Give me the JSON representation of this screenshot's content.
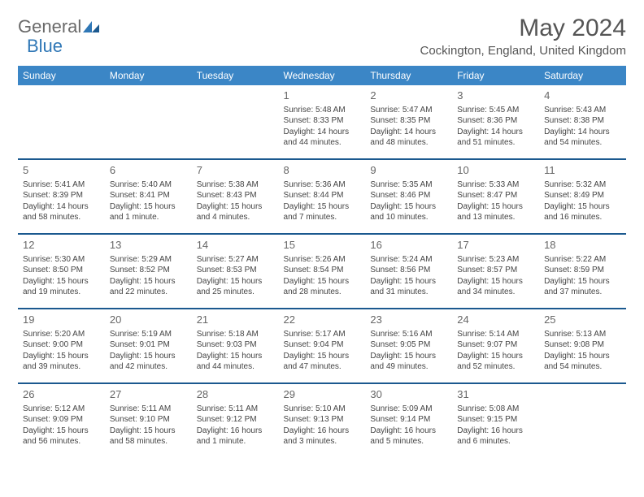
{
  "brand": {
    "part1": "General",
    "part2": "Blue"
  },
  "title": "May 2024",
  "location": "Cockington, England, United Kingdom",
  "style": {
    "header_bg": "#3b86c6",
    "header_fg": "#ffffff",
    "row_border": "#1b598f",
    "text_color": "#444444",
    "daynum_color": "#666666",
    "title_color": "#555555",
    "bg": "#ffffff"
  },
  "weekdays": [
    "Sunday",
    "Monday",
    "Tuesday",
    "Wednesday",
    "Thursday",
    "Friday",
    "Saturday"
  ],
  "weeks": [
    [
      null,
      null,
      null,
      {
        "n": "1",
        "sr": "Sunrise: 5:48 AM",
        "ss": "Sunset: 8:33 PM",
        "d1": "Daylight: 14 hours",
        "d2": "and 44 minutes."
      },
      {
        "n": "2",
        "sr": "Sunrise: 5:47 AM",
        "ss": "Sunset: 8:35 PM",
        "d1": "Daylight: 14 hours",
        "d2": "and 48 minutes."
      },
      {
        "n": "3",
        "sr": "Sunrise: 5:45 AM",
        "ss": "Sunset: 8:36 PM",
        "d1": "Daylight: 14 hours",
        "d2": "and 51 minutes."
      },
      {
        "n": "4",
        "sr": "Sunrise: 5:43 AM",
        "ss": "Sunset: 8:38 PM",
        "d1": "Daylight: 14 hours",
        "d2": "and 54 minutes."
      }
    ],
    [
      {
        "n": "5",
        "sr": "Sunrise: 5:41 AM",
        "ss": "Sunset: 8:39 PM",
        "d1": "Daylight: 14 hours",
        "d2": "and 58 minutes."
      },
      {
        "n": "6",
        "sr": "Sunrise: 5:40 AM",
        "ss": "Sunset: 8:41 PM",
        "d1": "Daylight: 15 hours",
        "d2": "and 1 minute."
      },
      {
        "n": "7",
        "sr": "Sunrise: 5:38 AM",
        "ss": "Sunset: 8:43 PM",
        "d1": "Daylight: 15 hours",
        "d2": "and 4 minutes."
      },
      {
        "n": "8",
        "sr": "Sunrise: 5:36 AM",
        "ss": "Sunset: 8:44 PM",
        "d1": "Daylight: 15 hours",
        "d2": "and 7 minutes."
      },
      {
        "n": "9",
        "sr": "Sunrise: 5:35 AM",
        "ss": "Sunset: 8:46 PM",
        "d1": "Daylight: 15 hours",
        "d2": "and 10 minutes."
      },
      {
        "n": "10",
        "sr": "Sunrise: 5:33 AM",
        "ss": "Sunset: 8:47 PM",
        "d1": "Daylight: 15 hours",
        "d2": "and 13 minutes."
      },
      {
        "n": "11",
        "sr": "Sunrise: 5:32 AM",
        "ss": "Sunset: 8:49 PM",
        "d1": "Daylight: 15 hours",
        "d2": "and 16 minutes."
      }
    ],
    [
      {
        "n": "12",
        "sr": "Sunrise: 5:30 AM",
        "ss": "Sunset: 8:50 PM",
        "d1": "Daylight: 15 hours",
        "d2": "and 19 minutes."
      },
      {
        "n": "13",
        "sr": "Sunrise: 5:29 AM",
        "ss": "Sunset: 8:52 PM",
        "d1": "Daylight: 15 hours",
        "d2": "and 22 minutes."
      },
      {
        "n": "14",
        "sr": "Sunrise: 5:27 AM",
        "ss": "Sunset: 8:53 PM",
        "d1": "Daylight: 15 hours",
        "d2": "and 25 minutes."
      },
      {
        "n": "15",
        "sr": "Sunrise: 5:26 AM",
        "ss": "Sunset: 8:54 PM",
        "d1": "Daylight: 15 hours",
        "d2": "and 28 minutes."
      },
      {
        "n": "16",
        "sr": "Sunrise: 5:24 AM",
        "ss": "Sunset: 8:56 PM",
        "d1": "Daylight: 15 hours",
        "d2": "and 31 minutes."
      },
      {
        "n": "17",
        "sr": "Sunrise: 5:23 AM",
        "ss": "Sunset: 8:57 PM",
        "d1": "Daylight: 15 hours",
        "d2": "and 34 minutes."
      },
      {
        "n": "18",
        "sr": "Sunrise: 5:22 AM",
        "ss": "Sunset: 8:59 PM",
        "d1": "Daylight: 15 hours",
        "d2": "and 37 minutes."
      }
    ],
    [
      {
        "n": "19",
        "sr": "Sunrise: 5:20 AM",
        "ss": "Sunset: 9:00 PM",
        "d1": "Daylight: 15 hours",
        "d2": "and 39 minutes."
      },
      {
        "n": "20",
        "sr": "Sunrise: 5:19 AM",
        "ss": "Sunset: 9:01 PM",
        "d1": "Daylight: 15 hours",
        "d2": "and 42 minutes."
      },
      {
        "n": "21",
        "sr": "Sunrise: 5:18 AM",
        "ss": "Sunset: 9:03 PM",
        "d1": "Daylight: 15 hours",
        "d2": "and 44 minutes."
      },
      {
        "n": "22",
        "sr": "Sunrise: 5:17 AM",
        "ss": "Sunset: 9:04 PM",
        "d1": "Daylight: 15 hours",
        "d2": "and 47 minutes."
      },
      {
        "n": "23",
        "sr": "Sunrise: 5:16 AM",
        "ss": "Sunset: 9:05 PM",
        "d1": "Daylight: 15 hours",
        "d2": "and 49 minutes."
      },
      {
        "n": "24",
        "sr": "Sunrise: 5:14 AM",
        "ss": "Sunset: 9:07 PM",
        "d1": "Daylight: 15 hours",
        "d2": "and 52 minutes."
      },
      {
        "n": "25",
        "sr": "Sunrise: 5:13 AM",
        "ss": "Sunset: 9:08 PM",
        "d1": "Daylight: 15 hours",
        "d2": "and 54 minutes."
      }
    ],
    [
      {
        "n": "26",
        "sr": "Sunrise: 5:12 AM",
        "ss": "Sunset: 9:09 PM",
        "d1": "Daylight: 15 hours",
        "d2": "and 56 minutes."
      },
      {
        "n": "27",
        "sr": "Sunrise: 5:11 AM",
        "ss": "Sunset: 9:10 PM",
        "d1": "Daylight: 15 hours",
        "d2": "and 58 minutes."
      },
      {
        "n": "28",
        "sr": "Sunrise: 5:11 AM",
        "ss": "Sunset: 9:12 PM",
        "d1": "Daylight: 16 hours",
        "d2": "and 1 minute."
      },
      {
        "n": "29",
        "sr": "Sunrise: 5:10 AM",
        "ss": "Sunset: 9:13 PM",
        "d1": "Daylight: 16 hours",
        "d2": "and 3 minutes."
      },
      {
        "n": "30",
        "sr": "Sunrise: 5:09 AM",
        "ss": "Sunset: 9:14 PM",
        "d1": "Daylight: 16 hours",
        "d2": "and 5 minutes."
      },
      {
        "n": "31",
        "sr": "Sunrise: 5:08 AM",
        "ss": "Sunset: 9:15 PM",
        "d1": "Daylight: 16 hours",
        "d2": "and 6 minutes."
      },
      null
    ]
  ]
}
